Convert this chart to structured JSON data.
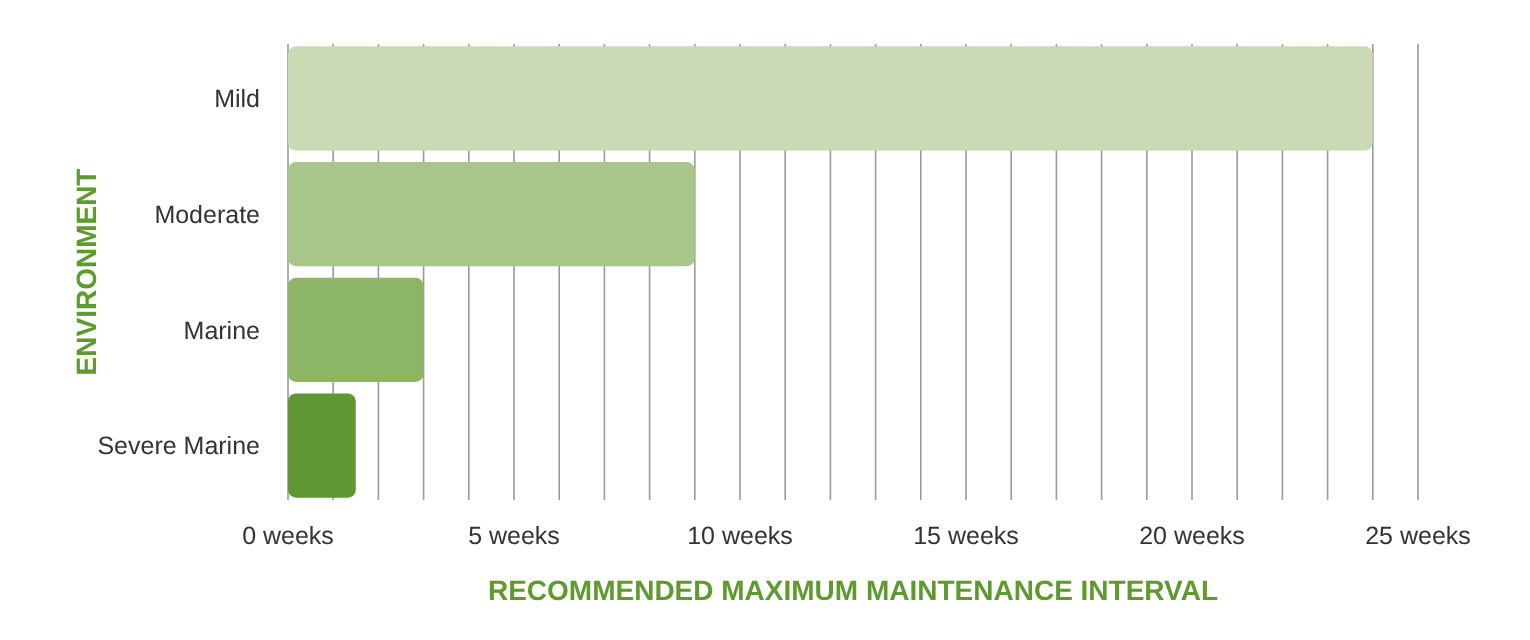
{
  "chart_data": {
    "type": "bar",
    "orientation": "horizontal",
    "xlabel": "RECOMMENDED MAXIMUM MAINTENANCE INTERVAL",
    "ylabel": "ENVIRONMENT",
    "categories": [
      "Mild",
      "Moderate",
      "Marine",
      "Severe Marine"
    ],
    "values": [
      24,
      9,
      3,
      1.5
    ],
    "colors": [
      "#c8d9b4",
      "#a8c68a",
      "#8db566",
      "#5f9832"
    ],
    "xlim": [
      0,
      25
    ],
    "xticks": [
      {
        "value": 0,
        "label": "0 weeks"
      },
      {
        "value": 1,
        "label": null
      },
      {
        "value": 2,
        "label": null
      },
      {
        "value": 3,
        "label": null
      },
      {
        "value": 4,
        "label": null
      },
      {
        "value": 5,
        "label": "5 weeks"
      },
      {
        "value": 6,
        "label": null
      },
      {
        "value": 7,
        "label": null
      },
      {
        "value": 8,
        "label": null
      },
      {
        "value": 9,
        "label": null
      },
      {
        "value": 10,
        "label": "10 weeks"
      },
      {
        "value": 11,
        "label": null
      },
      {
        "value": 12,
        "label": null
      },
      {
        "value": 13,
        "label": null
      },
      {
        "value": 14,
        "label": null
      },
      {
        "value": 15,
        "label": "15 weeks"
      },
      {
        "value": 16,
        "label": null
      },
      {
        "value": 17,
        "label": null
      },
      {
        "value": 18,
        "label": null
      },
      {
        "value": 19,
        "label": null
      },
      {
        "value": 20,
        "label": "20 weeks"
      },
      {
        "value": 21,
        "label": null
      },
      {
        "value": 22,
        "label": null
      },
      {
        "value": 23,
        "label": null
      },
      {
        "value": 24,
        "label": null
      },
      {
        "value": 25,
        "label": "25 weeks"
      }
    ],
    "grid": "x"
  }
}
